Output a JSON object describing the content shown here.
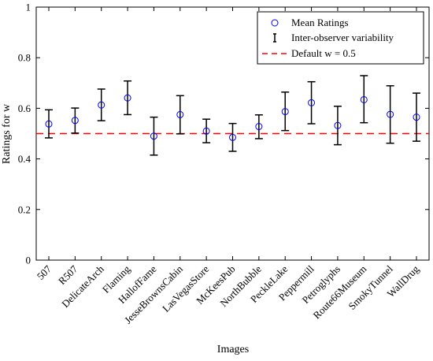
{
  "chart_data": {
    "type": "scatter",
    "xlabel": "Images",
    "ylabel": "Ratings for w",
    "ylim": [
      0,
      1
    ],
    "yticks": [
      "0",
      "0.2",
      "0.4",
      "0.6",
      "0.8",
      "1"
    ],
    "grid": false,
    "legend_position": "top-right",
    "categories": [
      "507",
      "R507",
      "DelicateArch",
      "Flaming",
      "HallofFame",
      "JesseBrownsCabin",
      "LasVegasStore",
      "McKeesPub",
      "NorthBubble",
      "PeckleLake",
      "Peppermill",
      "Petroglyphs",
      "Route66Museum",
      "SmokyTunnel",
      "WallDrug"
    ],
    "series": [
      {
        "name": "Mean Ratings",
        "type": "scatter",
        "color": "#0000ff",
        "values": [
          0.538,
          0.552,
          0.613,
          0.641,
          0.49,
          0.575,
          0.51,
          0.485,
          0.528,
          0.587,
          0.622,
          0.532,
          0.634,
          0.576,
          0.565
        ]
      },
      {
        "name": "Inter-observer variability",
        "type": "errorbar",
        "color": "#000000",
        "lower": [
          0.483,
          0.502,
          0.551,
          0.575,
          0.415,
          0.499,
          0.464,
          0.43,
          0.48,
          0.512,
          0.539,
          0.456,
          0.543,
          0.462,
          0.47
        ],
        "upper": [
          0.594,
          0.601,
          0.676,
          0.708,
          0.565,
          0.65,
          0.557,
          0.54,
          0.574,
          0.664,
          0.705,
          0.608,
          0.729,
          0.689,
          0.66
        ]
      },
      {
        "name": "Default w = 0.5",
        "type": "hline",
        "color": "#ff0000",
        "y": 0.5
      }
    ]
  }
}
